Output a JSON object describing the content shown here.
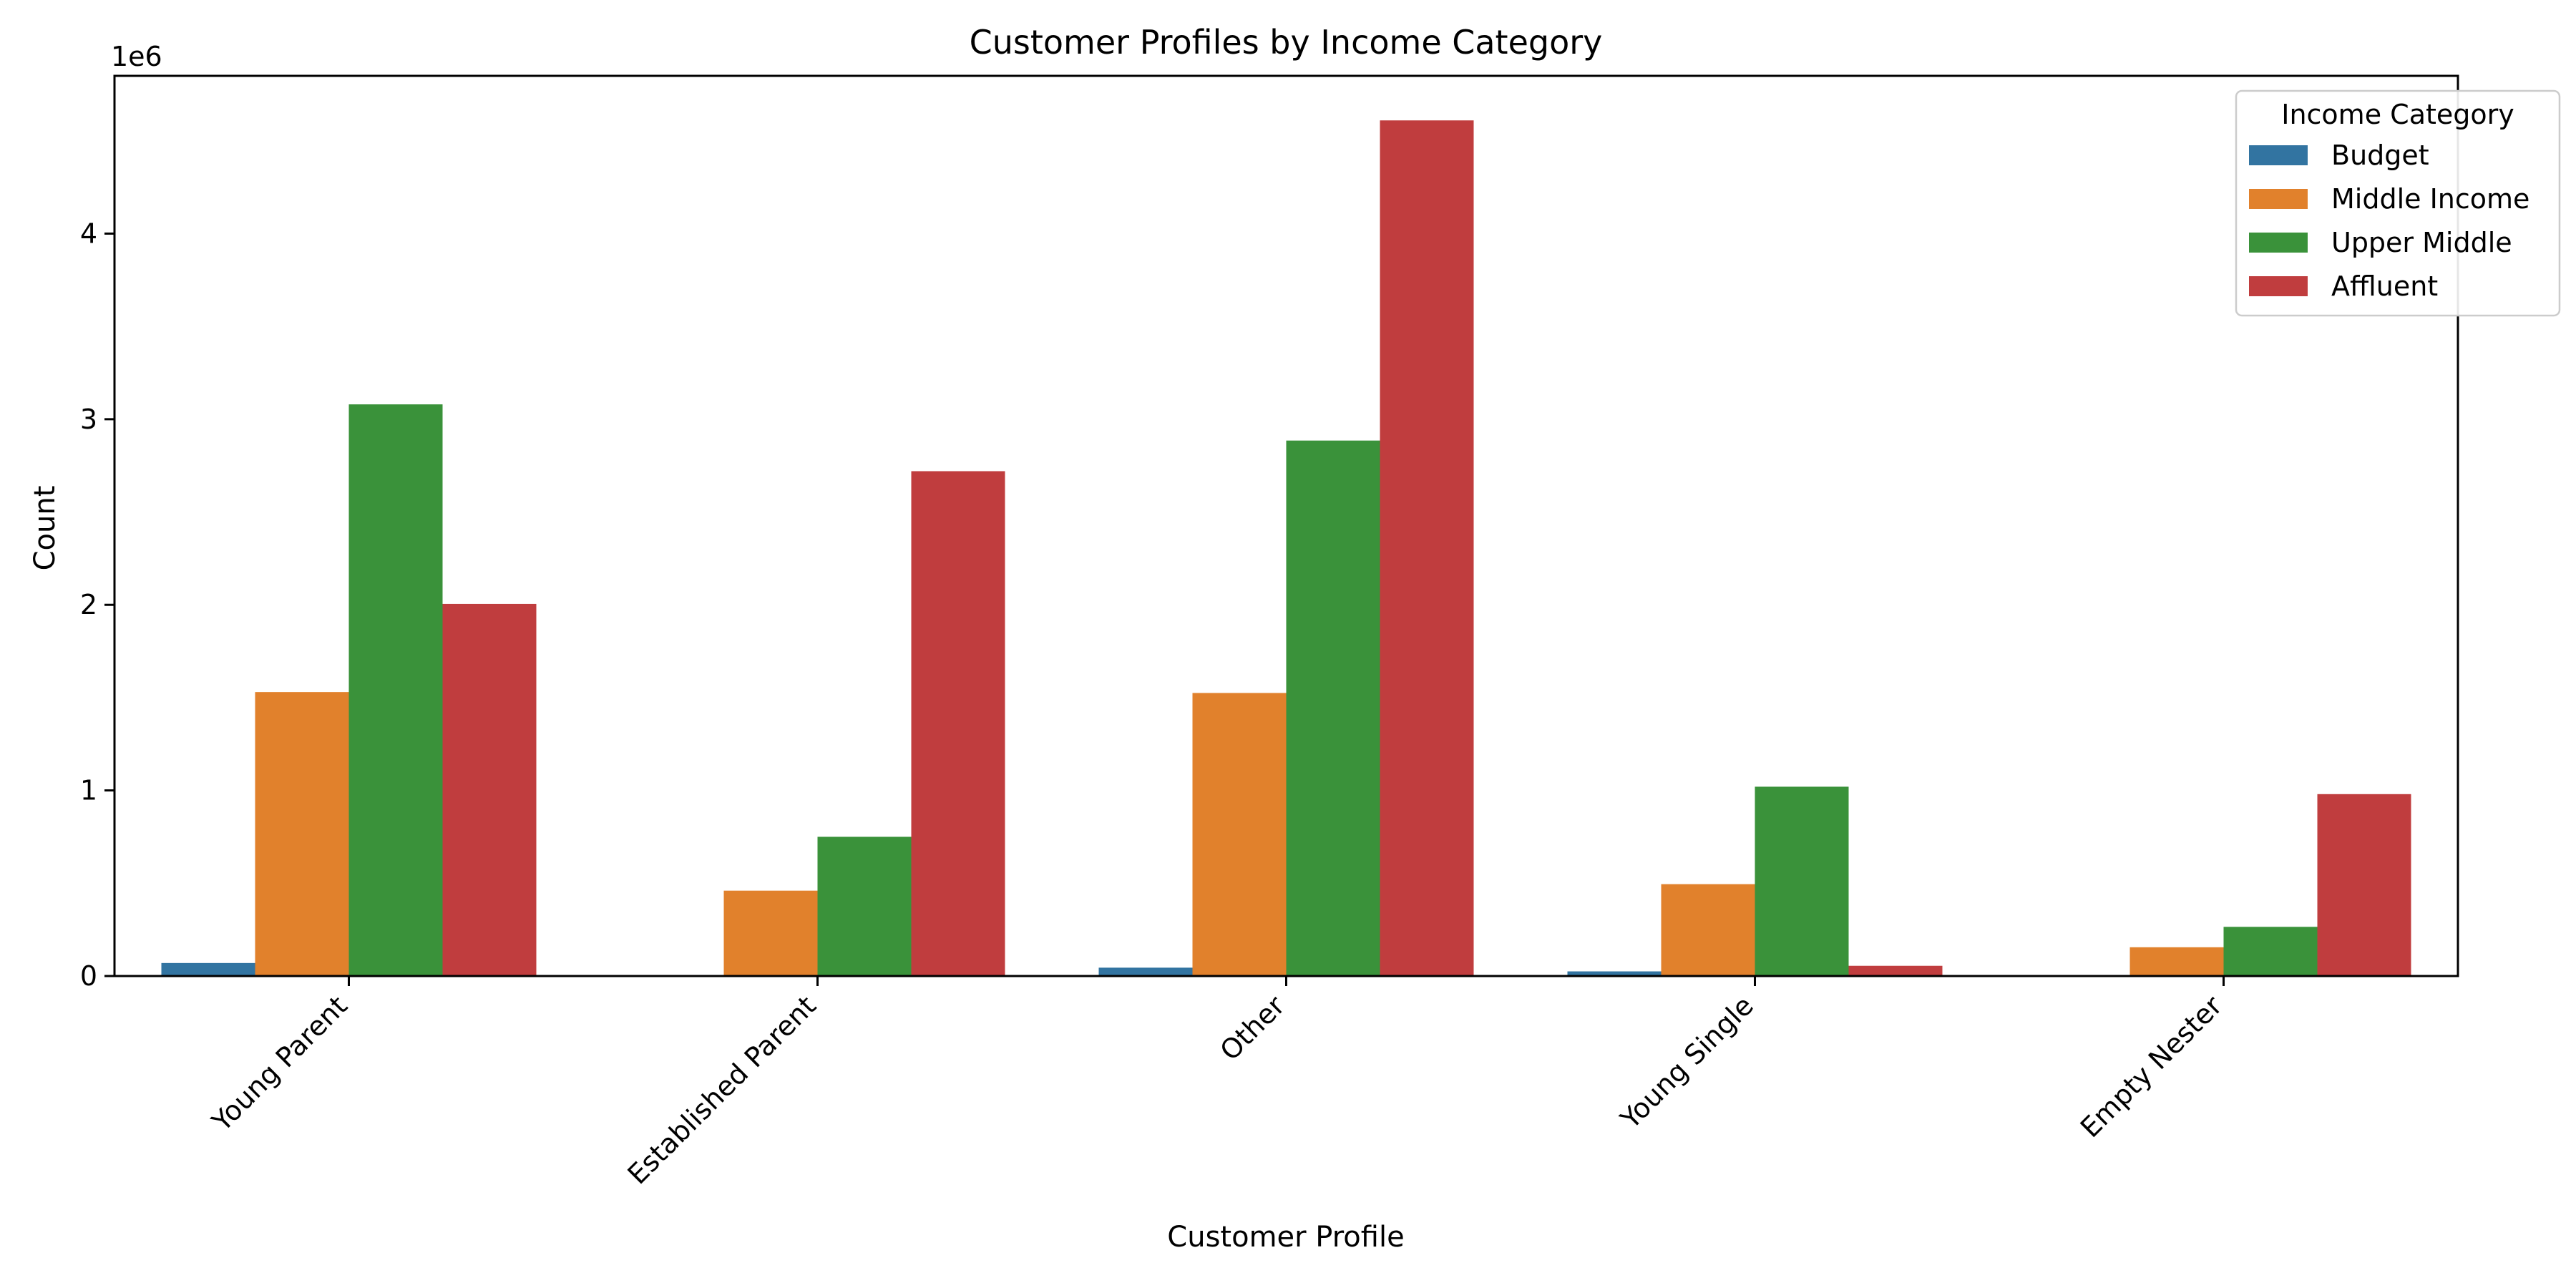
{
  "chart_data": {
    "type": "bar",
    "title": "Customer Profiles by Income Category",
    "xlabel": "Customer Profile",
    "ylabel": "Count",
    "y_offset_label": "1e6",
    "y_scale_multiplier": 1000000,
    "categories": [
      "Young Parent",
      "Established Parent",
      "Other",
      "Young Single",
      "Empty Nester"
    ],
    "ylim": [
      0,
      4850000
    ],
    "yticks": [
      0,
      1000000,
      2000000,
      3000000,
      4000000
    ],
    "ytick_labels": [
      "0",
      "1",
      "2",
      "3",
      "4"
    ],
    "legend": {
      "title": "Income Category",
      "placement": "top-right"
    },
    "series": [
      {
        "name": "Budget",
        "color": "#3274a1",
        "values": [
          70000,
          0,
          45000,
          25000,
          0
        ]
      },
      {
        "name": "Middle Income",
        "color": "#e1812c",
        "values": [
          1530000,
          460000,
          1525000,
          495000,
          155000
        ]
      },
      {
        "name": "Upper Middle",
        "color": "#3a923a",
        "values": [
          3080000,
          750000,
          2885000,
          1020000,
          265000
        ]
      },
      {
        "name": "Affluent",
        "color": "#c03d3e",
        "values": [
          2005000,
          2720000,
          4610000,
          55000,
          980000
        ]
      }
    ]
  }
}
